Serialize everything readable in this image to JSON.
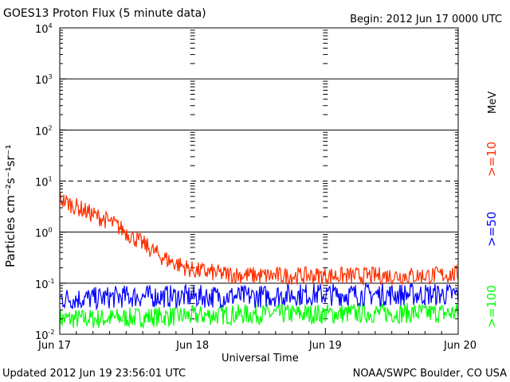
{
  "header": {
    "title": "GOES13 Proton Flux (5 minute data)",
    "begin": "Begin: 2012 Jun 17 0000 UTC"
  },
  "footer": {
    "updated": "Updated 2012 Jun 19 23:56:01 UTC",
    "credit": "NOAA/SWPC Boulder, CO USA"
  },
  "legend": {
    "unit": "MeV",
    "items": [
      {
        "label": ">=10",
        "color": "#ff3000"
      },
      {
        "label": ">=50",
        "color": "#0000ff"
      },
      {
        "label": ">=100",
        "color": "#00ff00"
      }
    ]
  },
  "chart_data": {
    "type": "line",
    "xlabel": "Universal Time",
    "ylabel": "Particles cm⁻²s⁻¹sr⁻¹",
    "yscale": "log",
    "ylim": [
      0.01,
      10000
    ],
    "xlim": [
      "2012-06-17 00:00",
      "2012-06-20 00:00"
    ],
    "x_ticks": [
      "Jun 17",
      "Jun 18",
      "Jun 19",
      "Jun 20"
    ],
    "y_ticks": [
      {
        "base": "10",
        "exp": "-2"
      },
      {
        "base": "10",
        "exp": "-1"
      },
      {
        "base": "10",
        "exp": "0"
      },
      {
        "base": "10",
        "exp": "1"
      },
      {
        "base": "10",
        "exp": "2"
      },
      {
        "base": "10",
        "exp": "3"
      },
      {
        "base": "10",
        "exp": "4"
      }
    ],
    "reference_lines": [
      {
        "value": 10,
        "style": "dashed"
      },
      {
        "value": 1,
        "style": "solid"
      },
      {
        "value": 0.1,
        "style": "solid"
      },
      {
        "value": 100,
        "style": "solid"
      },
      {
        "value": 1000,
        "style": "solid"
      }
    ],
    "series": [
      {
        "name": ">=10 MeV",
        "color": "#ff3000",
        "x": [
          "2012-06-17 00:00",
          "2012-06-17 02:00",
          "2012-06-17 04:00",
          "2012-06-17 06:00",
          "2012-06-17 08:00",
          "2012-06-17 10:00",
          "2012-06-17 12:00",
          "2012-06-17 14:00",
          "2012-06-17 16:00",
          "2012-06-17 18:00",
          "2012-06-17 20:00",
          "2012-06-17 22:00",
          "2012-06-18 00:00",
          "2012-06-18 06:00",
          "2012-06-18 12:00",
          "2012-06-18 18:00",
          "2012-06-19 00:00",
          "2012-06-19 06:00",
          "2012-06-19 12:00",
          "2012-06-19 18:00",
          "2012-06-20 00:00"
        ],
        "y": [
          4.5,
          3.5,
          2.8,
          2.2,
          1.8,
          1.4,
          1.0,
          0.7,
          0.5,
          0.35,
          0.27,
          0.22,
          0.18,
          0.15,
          0.14,
          0.14,
          0.14,
          0.14,
          0.14,
          0.14,
          0.15
        ]
      },
      {
        "name": ">=50 MeV",
        "color": "#0000ff",
        "x": [
          "2012-06-17 00:00",
          "2012-06-17 06:00",
          "2012-06-17 12:00",
          "2012-06-17 18:00",
          "2012-06-18 00:00",
          "2012-06-18 06:00",
          "2012-06-18 12:00",
          "2012-06-18 18:00",
          "2012-06-19 00:00",
          "2012-06-19 06:00",
          "2012-06-19 12:00",
          "2012-06-19 18:00",
          "2012-06-20 00:00"
        ],
        "y": [
          0.05,
          0.05,
          0.055,
          0.055,
          0.055,
          0.055,
          0.055,
          0.06,
          0.06,
          0.06,
          0.06,
          0.06,
          0.06
        ]
      },
      {
        "name": ">=100 MeV",
        "color": "#00ff00",
        "x": [
          "2012-06-17 00:00",
          "2012-06-17 06:00",
          "2012-06-17 12:00",
          "2012-06-17 18:00",
          "2012-06-18 00:00",
          "2012-06-18 06:00",
          "2012-06-18 12:00",
          "2012-06-18 18:00",
          "2012-06-19 00:00",
          "2012-06-19 06:00",
          "2012-06-19 12:00",
          "2012-06-19 18:00",
          "2012-06-20 00:00"
        ],
        "y": [
          0.02,
          0.02,
          0.021,
          0.022,
          0.023,
          0.024,
          0.025,
          0.025,
          0.025,
          0.026,
          0.026,
          0.026,
          0.026
        ]
      }
    ]
  }
}
